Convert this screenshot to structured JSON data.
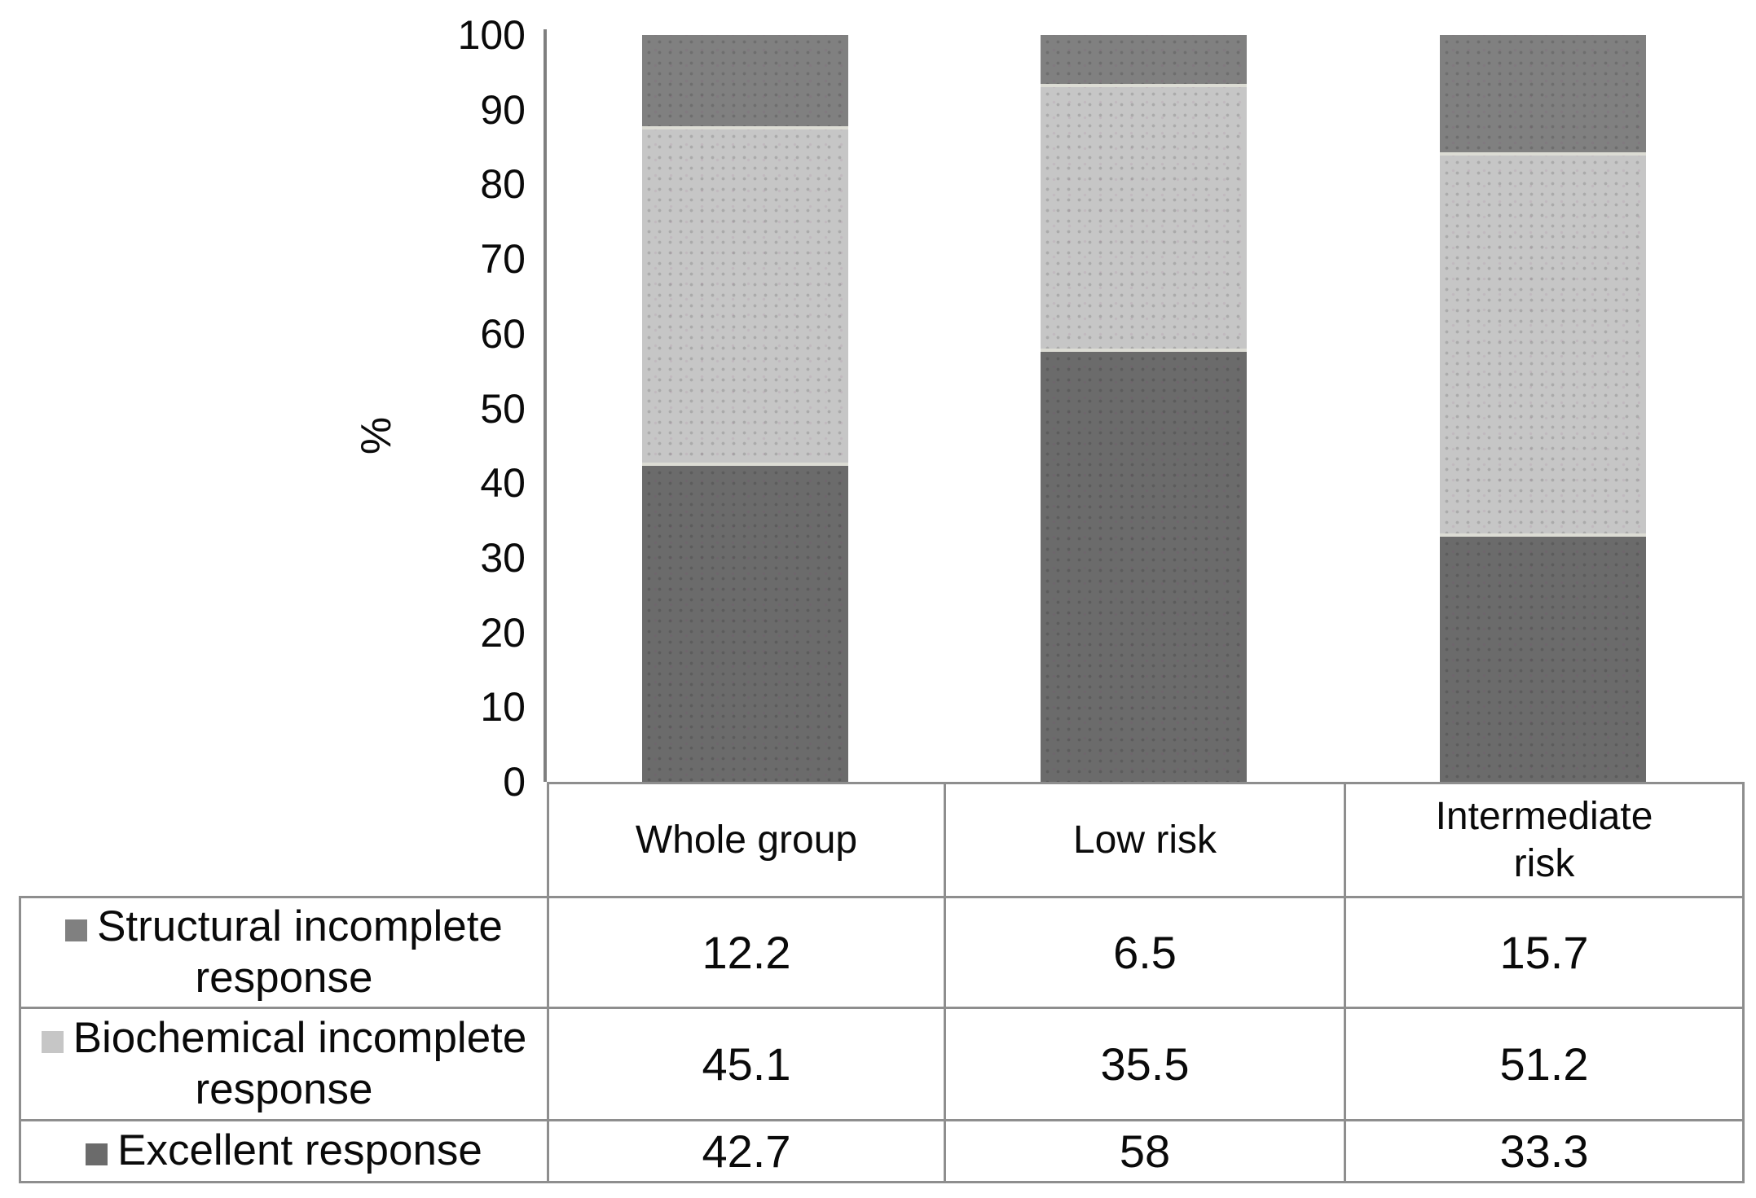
{
  "chart_data": {
    "type": "bar",
    "subtype": "stacked-percentage",
    "title": "",
    "ylabel": "%",
    "xlabel": "",
    "ylim": [
      0,
      100
    ],
    "yticks": [
      "0",
      "10",
      "20",
      "30",
      "40",
      "50",
      "60",
      "70",
      "80",
      "90",
      "100"
    ],
    "grid": false,
    "legend_position": "table-left-column",
    "categories": [
      "Whole group",
      "Low risk",
      "Intermediate risk"
    ],
    "category_display": [
      "Whole group",
      "Low risk",
      "Intermediate\nrisk"
    ],
    "series": [
      {
        "name": "Structural incomplete response",
        "color": "#808080",
        "values": [
          "12.2",
          "6.5",
          "15.7"
        ]
      },
      {
        "name": "Biochemical incomplete response",
        "color": "#c6c6c6",
        "values": [
          "45.1",
          "35.5",
          "51.2"
        ]
      },
      {
        "name": "Excellent response",
        "color": "#6b6b6b",
        "values": [
          "42.7",
          "58",
          "33.3"
        ]
      }
    ],
    "colors": {
      "axis_line": "#7f7f7f",
      "table_border": "#8e8e8e",
      "segment_separator": "#dcdcd4",
      "text": "#0a0a0a",
      "background": "#ffffff"
    }
  }
}
